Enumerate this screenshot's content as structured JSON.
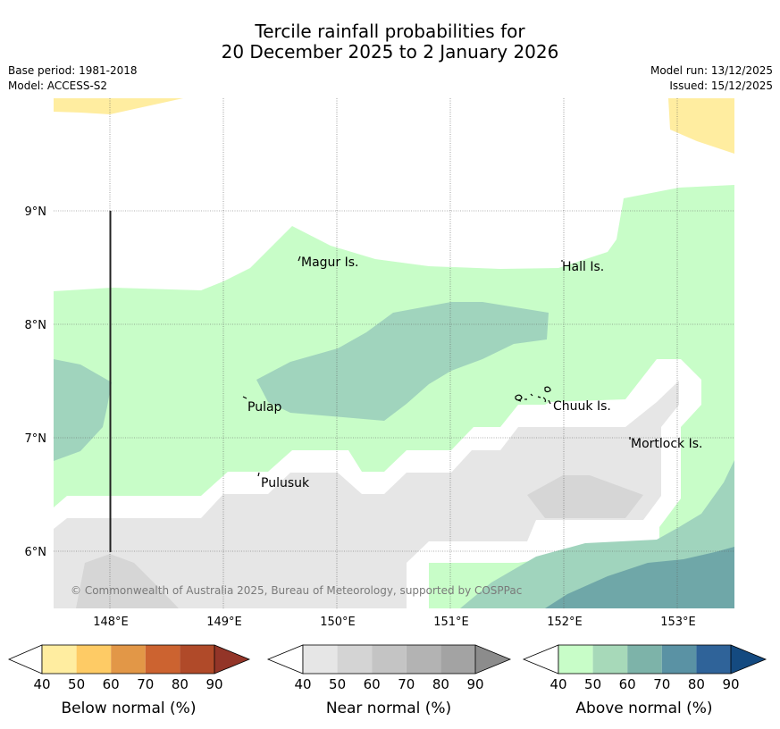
{
  "title": {
    "line1": "Tercile rainfall probabilities for",
    "line2": "20 December 2025 to 2 January 2026"
  },
  "meta": {
    "base_period": "Base period: 1981-2018",
    "model": "Model: ACCESS-S2",
    "model_run": "Model run: 13/12/2025",
    "issued": "Issued: 15/12/2025"
  },
  "map": {
    "copyright": "© Commonwealth of Australia 2025, Bureau of Meteorology, supported by COSPPac",
    "lat_labels": [
      "9°N",
      "8°N",
      "7°N",
      "6°N"
    ],
    "lon_labels": [
      "148°E",
      "149°E",
      "150°E",
      "151°E",
      "152°E",
      "153°E"
    ],
    "places": {
      "magur": "Magur Is.",
      "hall": "Hall Is.",
      "pulap": "Pulap",
      "chuuk": "Chuuk Is.",
      "mortlock": "Mortlock Is.",
      "pulusuk": "Pulusuk"
    }
  },
  "legend": {
    "ticks": [
      "40",
      "50",
      "60",
      "70",
      "80",
      "90"
    ],
    "below": {
      "label": "Below normal (%)",
      "colors": [
        "#ffeda0",
        "#fecb65",
        "#e29747",
        "#cc6330",
        "#b04a29",
        "#933528"
      ]
    },
    "near": {
      "label": "Near normal (%)",
      "colors": [
        "#e6e6e6",
        "#d4d4d4",
        "#c4c4c4",
        "#b3b3b3",
        "#a3a3a3",
        "#8c8c8c"
      ]
    },
    "above": {
      "label": "Above normal (%)",
      "colors": [
        "#c8fdc8",
        "#a7d9b9",
        "#7db3a9",
        "#5a92a4",
        "#2f6399",
        "#144a80"
      ]
    }
  }
}
